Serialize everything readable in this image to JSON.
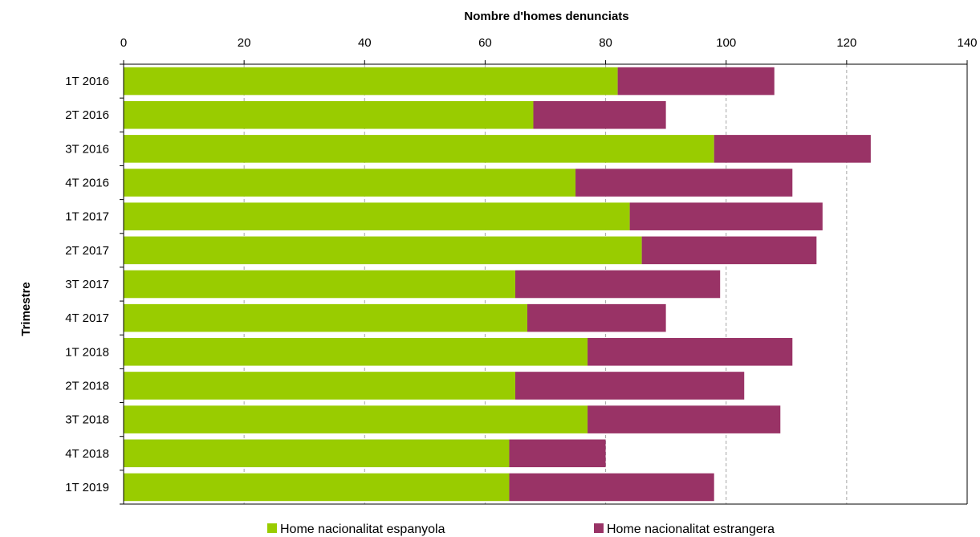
{
  "chart_data": {
    "type": "bar",
    "orientation": "horizontal",
    "stacked": true,
    "title": "",
    "xlabel": "Nombre d'homes denunciats",
    "ylabel": "Trimestre",
    "xlim": [
      0,
      140
    ],
    "x_ticks": [
      0,
      20,
      40,
      60,
      80,
      100,
      120,
      140
    ],
    "x_axis_position": "top",
    "grid": "vertical dashed",
    "legend_position": "bottom",
    "categories": [
      "1T 2016",
      "2T 2016",
      "3T 2016",
      "4T 2016",
      "1T 2017",
      "2T 2017",
      "3T 2017",
      "4T 2017",
      "1T 2018",
      "2T 2018",
      "3T 2018",
      "4T 2018",
      "1T 2019"
    ],
    "series": [
      {
        "name": "Home nacionalitat espanyola",
        "color": "#99cc00",
        "values": [
          82,
          68,
          98,
          75,
          84,
          86,
          65,
          67,
          77,
          65,
          77,
          64,
          64
        ]
      },
      {
        "name": "Home nacionalitat estrangera",
        "color": "#993366",
        "values": [
          26,
          22,
          26,
          36,
          32,
          29,
          34,
          23,
          34,
          38,
          32,
          16,
          34
        ]
      }
    ]
  }
}
